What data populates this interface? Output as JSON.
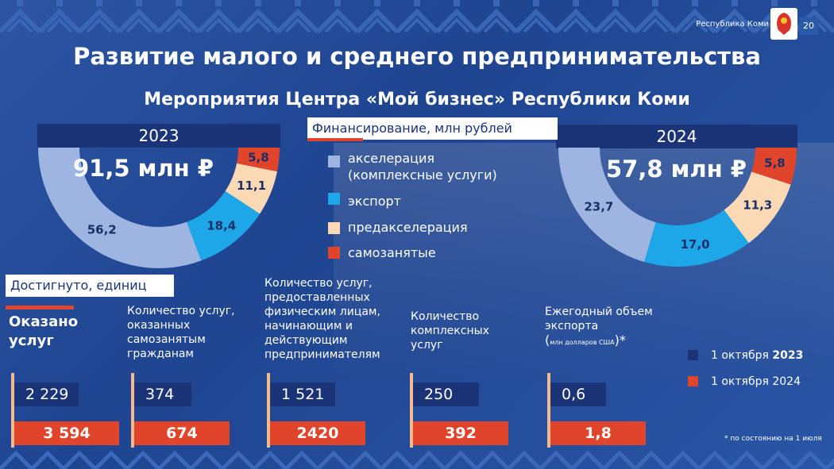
{
  "header": {
    "region": "Республика Коми",
    "page_number": "20"
  },
  "title": "Развитие малого и среднего предпринимательства",
  "subtitle": "Мероприятия Центра «Мой бизнес» Республики Коми",
  "financing_label": "Финансирование, млн рублей",
  "colors": {
    "acceleration": "#9db5e0",
    "export": "#1ea7e8",
    "preacceleration": "#fbd9b5",
    "selfemployed": "#e0452b",
    "dark": "#1b3477",
    "red": "#e0452b"
  },
  "chart_data": [
    {
      "type": "pie",
      "year": "2023",
      "total_label": "91,5 млн ₽",
      "slices": [
        {
          "name": "акселерация (комплексные услуги)",
          "value": 56.2,
          "label": "56,2"
        },
        {
          "name": "экспорт",
          "value": 18.4,
          "label": "18,4"
        },
        {
          "name": "предакселерация",
          "value": 11.1,
          "label": "11,1"
        },
        {
          "name": "самозанятые",
          "value": 5.8,
          "label": "5,8"
        }
      ]
    },
    {
      "type": "pie",
      "year": "2024",
      "total_label": "57,8 млн ₽",
      "slices": [
        {
          "name": "акселерация (комплексные услуги)",
          "value": 23.7,
          "label": "23,7"
        },
        {
          "name": "экспорт",
          "value": 17.0,
          "label": "17,0"
        },
        {
          "name": "предакселерация",
          "value": 11.3,
          "label": "11,3"
        },
        {
          "name": "самозанятые",
          "value": 5.8,
          "label": "5,8"
        }
      ]
    },
    {
      "type": "bar",
      "categories": [
        "Оказано услуг",
        "Количество услуг, оказанных самозанятым гражданам",
        "Количество услуг, предоставленных физическим лицам, начинающим и действующим предпринимателям",
        "Количество комплексных услуг",
        "Ежегодный объем экспорта (млн долларов США)*"
      ],
      "series": [
        {
          "name": "1 октября 2023",
          "values": [
            2229,
            374,
            1521,
            250,
            0.6
          ],
          "labels": [
            "2 229",
            "374",
            "1 521",
            "250",
            "0,6"
          ]
        },
        {
          "name": "1 октября 2024",
          "values": [
            3594,
            674,
            2420,
            392,
            1.8
          ],
          "labels": [
            "3 594",
            "674",
            "2420",
            "392",
            "1,8"
          ]
        }
      ]
    }
  ],
  "legend": [
    "акселерация",
    "(комплексные услуги)",
    "экспорт",
    "предакселерация",
    "самозанятые"
  ],
  "achieved_label": "Достигнуто, единиц",
  "columns": {
    "services_total": "Оказано услуг",
    "selfemployed": "Количество услуг, оказанных самозанятым гражданам",
    "individuals": "Количество услуг, предоставленных физическим лицам, начинающим и действующим предпринимателям",
    "complex": "Количество комплексных услуг",
    "export_title": "Ежегодный объем экспорта",
    "export_unit_open": "(",
    "export_unit": "млн долларов США",
    "export_unit_close": ")*"
  },
  "bar_legend": {
    "s2023_a": "1 октября ",
    "s2023_b": "2023",
    "s2024": "1 октября 2024"
  },
  "footnote": "* по состоянию на 1 июля"
}
